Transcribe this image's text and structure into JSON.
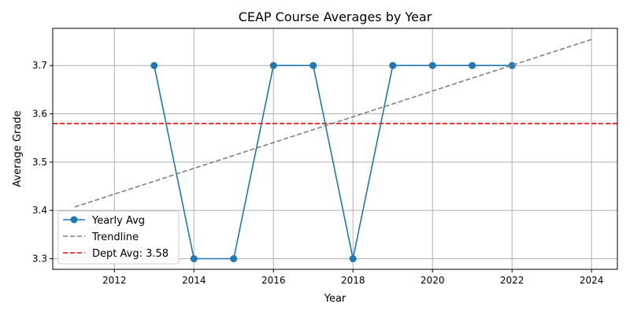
{
  "chart_data": {
    "type": "line",
    "title": "CEAP Course Averages by Year",
    "xlabel": "Year",
    "ylabel": "Average Grade",
    "xlim": [
      2010.45,
      2024.65
    ],
    "ylim": [
      3.278,
      3.777
    ],
    "xticks": [
      2012,
      2014,
      2016,
      2018,
      2020,
      2022,
      2024
    ],
    "yticks": [
      3.3,
      3.4,
      3.5,
      3.6,
      3.7
    ],
    "grid": true,
    "legend_position": "lower left",
    "series": [
      {
        "name": "Yearly Avg",
        "style": "line-with-markers",
        "color": "#1f77b4",
        "x": [
          2013,
          2014,
          2015,
          2016,
          2017,
          2018,
          2019,
          2020,
          2021,
          2022
        ],
        "y": [
          3.7,
          3.3,
          3.3,
          3.7,
          3.7,
          3.3,
          3.7,
          3.7,
          3.7,
          3.7
        ]
      },
      {
        "name": "Trendline",
        "style": "dashed",
        "color": "#808080",
        "x": [
          2011,
          2024
        ],
        "y": [
          3.407,
          3.754
        ]
      }
    ],
    "reference_lines": [
      {
        "name": "Dept Avg: 3.58",
        "orientation": "horizontal",
        "value": 3.58,
        "color": "#ff0000",
        "style": "dashed"
      }
    ]
  }
}
